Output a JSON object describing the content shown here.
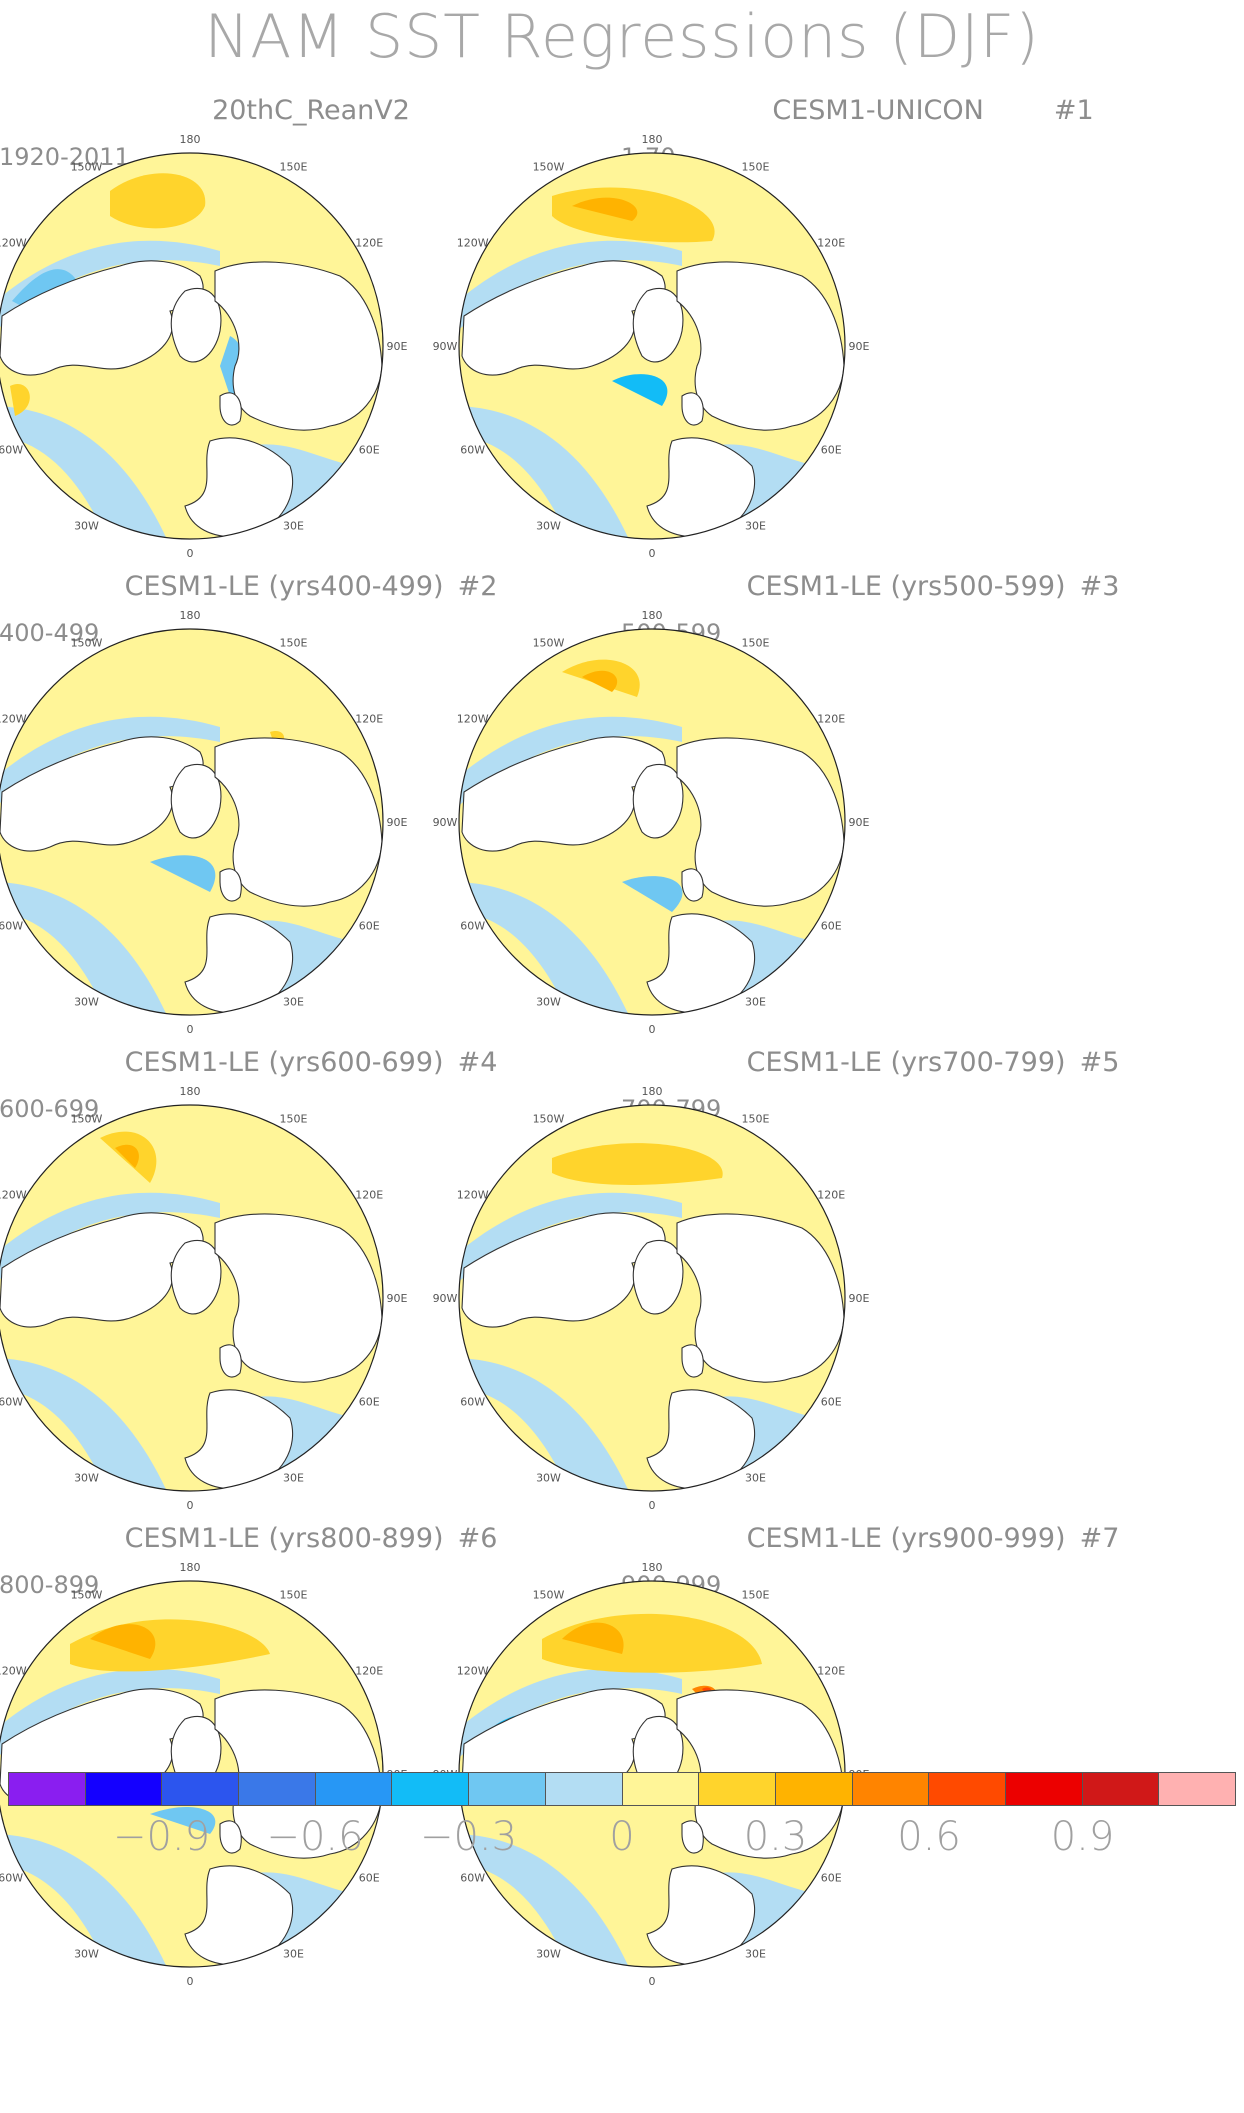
{
  "title": "NAM SST Regressions (DJF)",
  "longitude_labels": [
    "180",
    "150E",
    "120E",
    "90E",
    "60E",
    "30E",
    "0",
    "30W",
    "60W",
    "90W",
    "120W",
    "150W"
  ],
  "panels": [
    {
      "id": "p0",
      "title": "20thC_ReanV2",
      "number": "",
      "period": "1920-2011"
    },
    {
      "id": "p1",
      "title": "CESM1-UNICON",
      "number": "#1",
      "period": "1-70"
    },
    {
      "id": "p2",
      "title": "CESM1-LE (yrs400-499)",
      "number": "#2",
      "period": "400-499"
    },
    {
      "id": "p3",
      "title": "CESM1-LE (yrs500-599)",
      "number": "#3",
      "period": "500-599"
    },
    {
      "id": "p4",
      "title": "CESM1-LE (yrs600-699)",
      "number": "#4",
      "period": "600-699"
    },
    {
      "id": "p5",
      "title": "CESM1-LE (yrs700-799)",
      "number": "#5",
      "period": "700-799"
    },
    {
      "id": "p6",
      "title": "CESM1-LE (yrs800-899)",
      "number": "#6",
      "period": "800-899"
    },
    {
      "id": "p7",
      "title": "CESM1-LE (yrs900-999)",
      "number": "#7",
      "period": "900-999"
    }
  ],
  "colorbar": {
    "colors": [
      "#8a1ef0",
      "#1400ff",
      "#2c55ee",
      "#3a78e8",
      "#2797f5",
      "#12bcf7",
      "#6fc7f2",
      "#b3ddf3",
      "#fff598",
      "#ffd42c",
      "#ffb300",
      "#ff8400",
      "#ff4a00",
      "#ec0000",
      "#d01818",
      "#ffb1b1"
    ],
    "labels": [
      "−0.9",
      "−0.6",
      "−0.3",
      "0",
      "0.3",
      "0.6",
      "0.9"
    ]
  }
}
